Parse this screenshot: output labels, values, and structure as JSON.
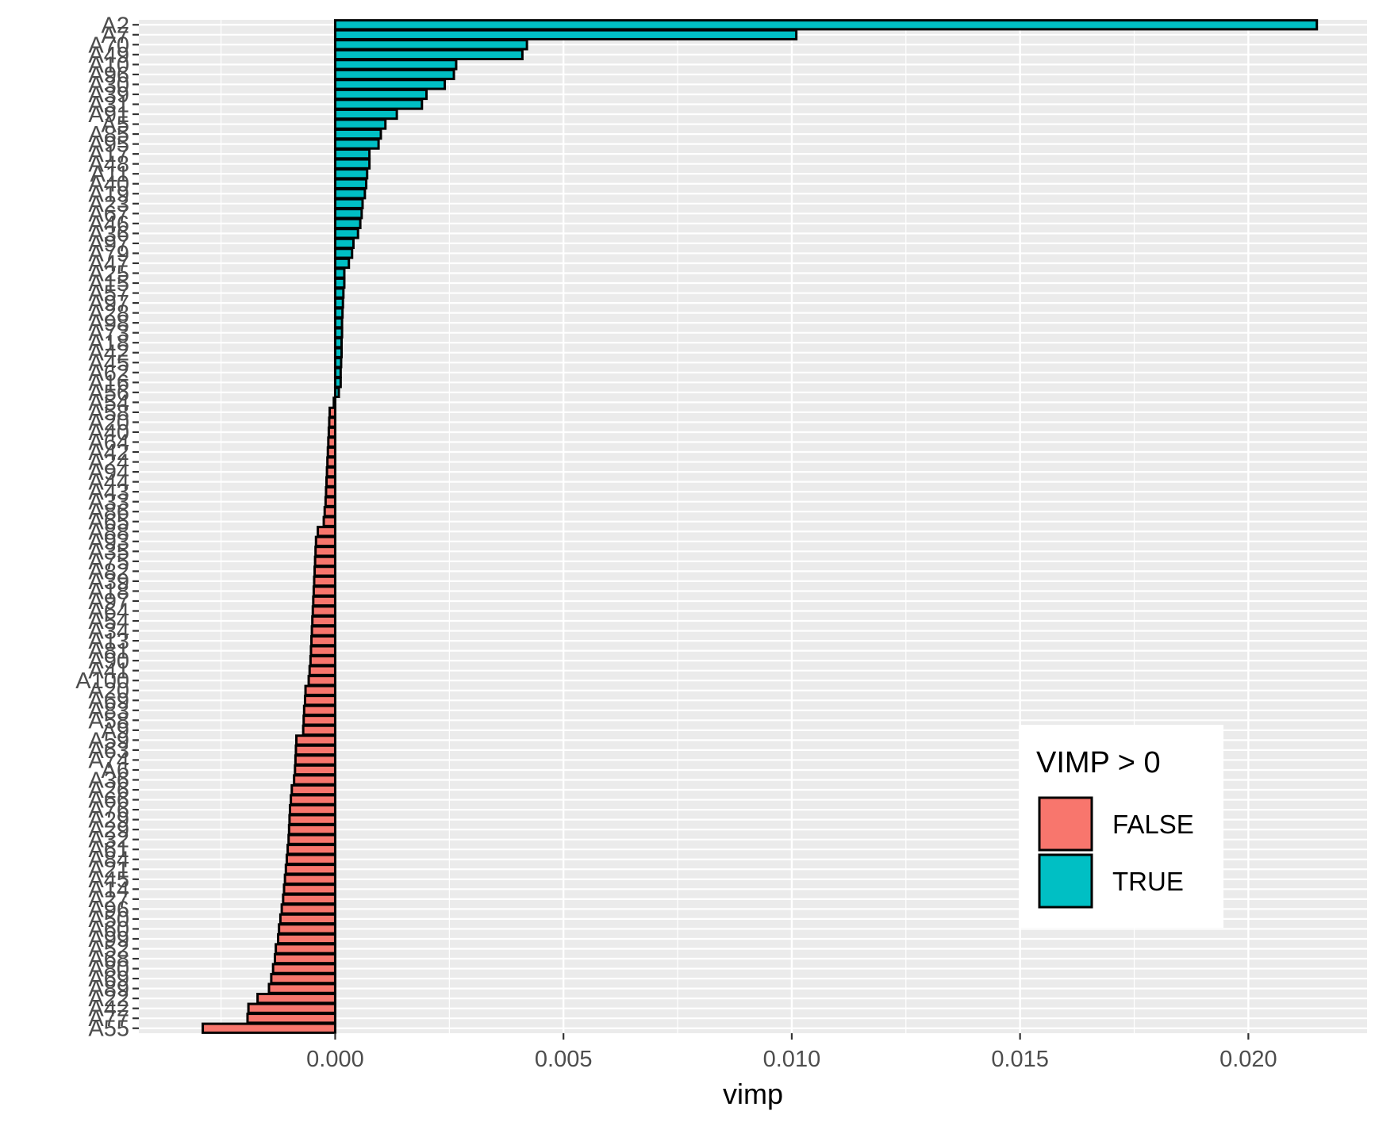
{
  "chart_data": {
    "type": "bar",
    "orientation": "horizontal",
    "xlabel": "vimp",
    "ylabel": "",
    "xlim": [
      -0.0043,
      0.0226
    ],
    "x_ticks": [
      0.0,
      0.005,
      0.01,
      0.015,
      0.02
    ],
    "x_tick_labels": [
      "0.000",
      "0.005",
      "0.010",
      "0.015",
      "0.020"
    ],
    "grid": true,
    "legend": {
      "title": "VIMP > 0",
      "position": "bottom-right",
      "entries": [
        {
          "label": "FALSE",
          "color": "#F8766D"
        },
        {
          "label": "TRUE",
          "color": "#00BFC4"
        }
      ]
    },
    "colors": {
      "false": "#F8766D",
      "true": "#00BFC4",
      "bar_outline": "#000000",
      "panel": "#EBEBEB",
      "grid": "#FFFFFF"
    },
    "categories": [
      "A2",
      "A7",
      "A70",
      "A49",
      "A10",
      "A96",
      "A30",
      "A39",
      "A31",
      "A91",
      "A5",
      "A85",
      "A95",
      "A17",
      "A48",
      "A11",
      "A40",
      "A19",
      "A23",
      "A67",
      "A46",
      "A36",
      "A97",
      "A79",
      "A47",
      "A25",
      "A15",
      "A57",
      "A97",
      "A28",
      "A98",
      "A73",
      "A18",
      "A42",
      "A45",
      "A62",
      "A16",
      "A56",
      "A54",
      "A58",
      "A20",
      "A40",
      "A64",
      "A42",
      "A24",
      "A94",
      "A44",
      "A43",
      "A33",
      "A86",
      "A65",
      "A88",
      "A93",
      "A35",
      "A75",
      "A82",
      "A39",
      "A18",
      "A97",
      "A64",
      "A54",
      "A34",
      "A13",
      "A81",
      "A90",
      "A41",
      "A100",
      "A20",
      "A69",
      "A83",
      "A58",
      "A9",
      "A59",
      "A63",
      "A74",
      "A6",
      "A36",
      "A26",
      "A66",
      "A76",
      "A29",
      "A29",
      "A32",
      "A61",
      "A84",
      "A21",
      "A45",
      "A14",
      "A27",
      "A96",
      "A50",
      "A60",
      "A99",
      "A52",
      "A68",
      "A80",
      "A69",
      "A89",
      "A22",
      "A42",
      "A77",
      "A55"
    ],
    "values": [
      0.0215,
      0.0101,
      0.0042,
      0.0041,
      0.00265,
      0.0026,
      0.0024,
      0.002,
      0.0019,
      0.00135,
      0.0011,
      0.001,
      0.00095,
      0.00075,
      0.00075,
      0.0007,
      0.00068,
      0.00065,
      0.0006,
      0.00058,
      0.00055,
      0.0005,
      0.0004,
      0.00037,
      0.0003,
      0.0002,
      0.0002,
      0.00018,
      0.00017,
      0.00016,
      0.00015,
      0.00015,
      0.00014,
      0.00014,
      0.00013,
      0.00012,
      0.00012,
      8e-05,
      -3e-05,
      -0.00012,
      -0.00013,
      -0.00014,
      -0.00015,
      -0.00016,
      -0.00017,
      -0.00018,
      -0.00019,
      -0.0002,
      -0.00021,
      -0.00023,
      -0.00025,
      -0.00038,
      -0.00042,
      -0.00043,
      -0.00044,
      -0.00045,
      -0.00046,
      -0.00047,
      -0.00048,
      -0.00049,
      -0.0005,
      -0.00051,
      -0.00052,
      -0.00053,
      -0.00054,
      -0.00056,
      -0.00058,
      -0.00065,
      -0.00066,
      -0.00068,
      -0.00069,
      -0.0007,
      -0.00085,
      -0.00086,
      -0.00087,
      -0.00088,
      -0.0009,
      -0.00095,
      -0.00097,
      -0.00099,
      -0.001,
      -0.00101,
      -0.00102,
      -0.00104,
      -0.00106,
      -0.00108,
      -0.0011,
      -0.00112,
      -0.00114,
      -0.00117,
      -0.0012,
      -0.00123,
      -0.00125,
      -0.0013,
      -0.00132,
      -0.00136,
      -0.0014,
      -0.00145,
      -0.0017,
      -0.0019,
      -0.00192,
      -0.0029
    ]
  }
}
